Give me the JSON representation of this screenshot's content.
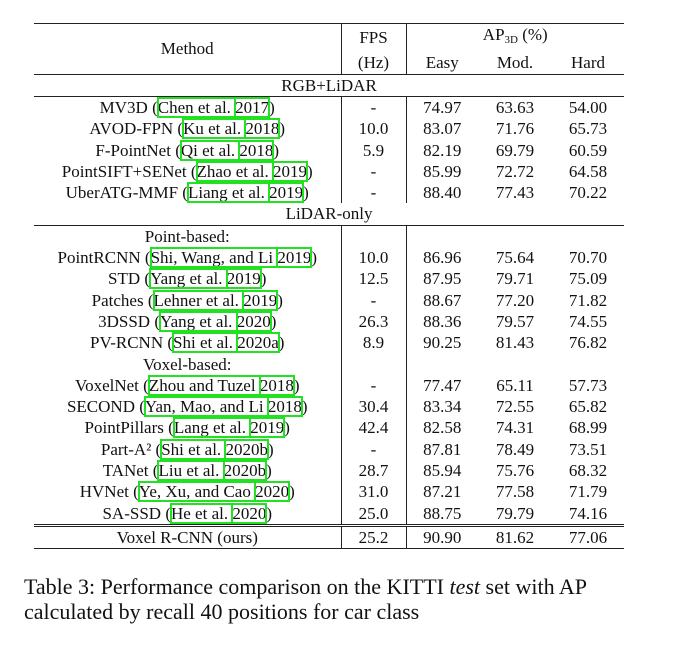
{
  "header": {
    "method": "Method",
    "fps": "FPS",
    "fps_unit": "(Hz)",
    "ap": "AP",
    "ap_sub": "3D",
    "ap_unit": " (%)",
    "easy": "Easy",
    "mod": "Mod.",
    "hard": "Hard"
  },
  "sections": [
    {
      "title": "RGB+LiDAR",
      "groups": [
        {
          "label": "",
          "rows": [
            {
              "name": "MV3D",
              "author": "Chen et al. ",
              "year": "2017",
              "fps": "-",
              "easy": "74.97",
              "mod": "63.63",
              "hard": "54.00"
            },
            {
              "name": "AVOD-FPN",
              "author": "Ku et al. ",
              "year": "2018",
              "fps": "10.0",
              "easy": "83.07",
              "mod": "71.76",
              "hard": "65.73"
            },
            {
              "name": "F-PointNet",
              "author": "Qi et al. ",
              "year": "2018",
              "fps": "5.9",
              "easy": "82.19",
              "mod": "69.79",
              "hard": "60.59"
            },
            {
              "name": "PointSIFT+SENet",
              "author": "Zhao et al. ",
              "year": "2019",
              "fps": "-",
              "easy": "85.99",
              "mod": "72.72",
              "hard": "64.58"
            },
            {
              "name": "UberATG-MMF",
              "author": "Liang et al. ",
              "year": "2019",
              "fps": "-",
              "easy": "88.40",
              "mod": "77.43",
              "hard": "70.22"
            }
          ]
        }
      ]
    },
    {
      "title": "LiDAR-only",
      "groups": [
        {
          "label": "Point-based:",
          "rows": [
            {
              "name": "PointRCNN",
              "author": "Shi, Wang, and Li ",
              "year": "2019",
              "fps": "10.0",
              "easy": "86.96",
              "mod": "75.64",
              "hard": "70.70"
            },
            {
              "name": "STD",
              "author": "Yang et al. ",
              "year": "2019",
              "fps": "12.5",
              "easy": "87.95",
              "mod": "79.71",
              "hard": "75.09"
            },
            {
              "name": "Patches",
              "author": "Lehner et al. ",
              "year": "2019",
              "fps": "-",
              "easy": "88.67",
              "mod": "77.20",
              "hard": "71.82"
            },
            {
              "name": "3DSSD",
              "author": "Yang et al. ",
              "year": "2020",
              "fps": "26.3",
              "easy": "88.36",
              "mod": "79.57",
              "hard": "74.55"
            },
            {
              "name": "PV-RCNN",
              "author": "Shi et al. ",
              "year": "2020a",
              "fps": "8.9",
              "easy": "90.25",
              "mod": "81.43",
              "hard": "76.82"
            }
          ]
        },
        {
          "label": "Voxel-based:",
          "rows": [
            {
              "name": "VoxelNet",
              "author": "Zhou and Tuzel ",
              "year": "2018",
              "fps": "-",
              "easy": "77.47",
              "mod": "65.11",
              "hard": "57.73"
            },
            {
              "name": "SECOND",
              "author": "Yan, Mao, and Li ",
              "year": "2018",
              "fps": "30.4",
              "easy": "83.34",
              "mod": "72.55",
              "hard": "65.82"
            },
            {
              "name": "PointPillars",
              "author": "Lang et al. ",
              "year": "2019",
              "fps": "42.4",
              "easy": "82.58",
              "mod": "74.31",
              "hard": "68.99"
            },
            {
              "name": "Part-A²",
              "author": "Shi et al. ",
              "year": "2020b",
              "fps": "-",
              "easy": "87.81",
              "mod": "78.49",
              "hard": "73.51"
            },
            {
              "name": "TANet",
              "author": "Liu et al. ",
              "year": "2020b",
              "fps": "28.7",
              "easy": "85.94",
              "mod": "75.76",
              "hard": "68.32"
            },
            {
              "name": "HVNet",
              "author": "Ye, Xu, and Cao ",
              "year": "2020",
              "fps": "31.0",
              "easy": "87.21",
              "mod": "77.58",
              "hard": "71.79"
            },
            {
              "name": "SA-SSD",
              "author": "He et al. ",
              "year": "2020",
              "fps": "25.0",
              "easy": "88.75",
              "mod": "79.79",
              "hard": "74.16"
            }
          ]
        }
      ]
    }
  ],
  "ours": {
    "name": "Voxel R-CNN (ours)",
    "fps": "25.2",
    "easy": "90.90",
    "mod": "81.62",
    "hard": "77.06"
  },
  "caption": {
    "prefix": "Table 3: Performance comparison on the KITTI ",
    "emph": "test",
    "suffix": " set with AP calculated by recall 40 positions for car class"
  },
  "colors": {
    "citation_box": "#22e022",
    "text": "#111111"
  }
}
